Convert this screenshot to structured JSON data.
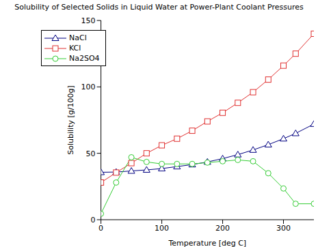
{
  "chart_data": {
    "type": "line",
    "title": "Solubility of Selected Solids in Liquid Water at Power-Plant Coolant Pressures",
    "x_label": "Temperature [deg C]",
    "y_label": "Solubility [g/100g]",
    "x": [
      0,
      25,
      50,
      75,
      100,
      125,
      150,
      175,
      200,
      225,
      250,
      275,
      300,
      320,
      350
    ],
    "series": [
      {
        "name": "NaCl",
        "color": "#000080",
        "marker": "triangle",
        "values": [
          35.7,
          35.9,
          36.7,
          37.5,
          38.5,
          40,
          41.5,
          43.5,
          46,
          49,
          52.5,
          56.5,
          61,
          65,
          72
        ]
      },
      {
        "name": "KCl",
        "color": "#e03030",
        "marker": "square",
        "values": [
          28,
          35.5,
          42.6,
          50,
          56,
          61,
          67,
          74,
          80.5,
          88,
          96,
          105.5,
          116,
          125,
          140
        ]
      },
      {
        "name": "Na2SO4",
        "color": "#33cc33",
        "marker": "circle",
        "values": [
          4.5,
          28,
          47,
          43.5,
          42,
          42,
          42,
          43,
          44,
          45,
          44,
          35,
          23.5,
          12,
          12
        ]
      }
    ],
    "xlim": [
      0,
      350
    ],
    "xticks": [
      0,
      100,
      200,
      300
    ],
    "ylim": [
      0,
      150
    ],
    "yticks": [
      0,
      50,
      100,
      150
    ],
    "grid": false,
    "legend": "top-left"
  }
}
